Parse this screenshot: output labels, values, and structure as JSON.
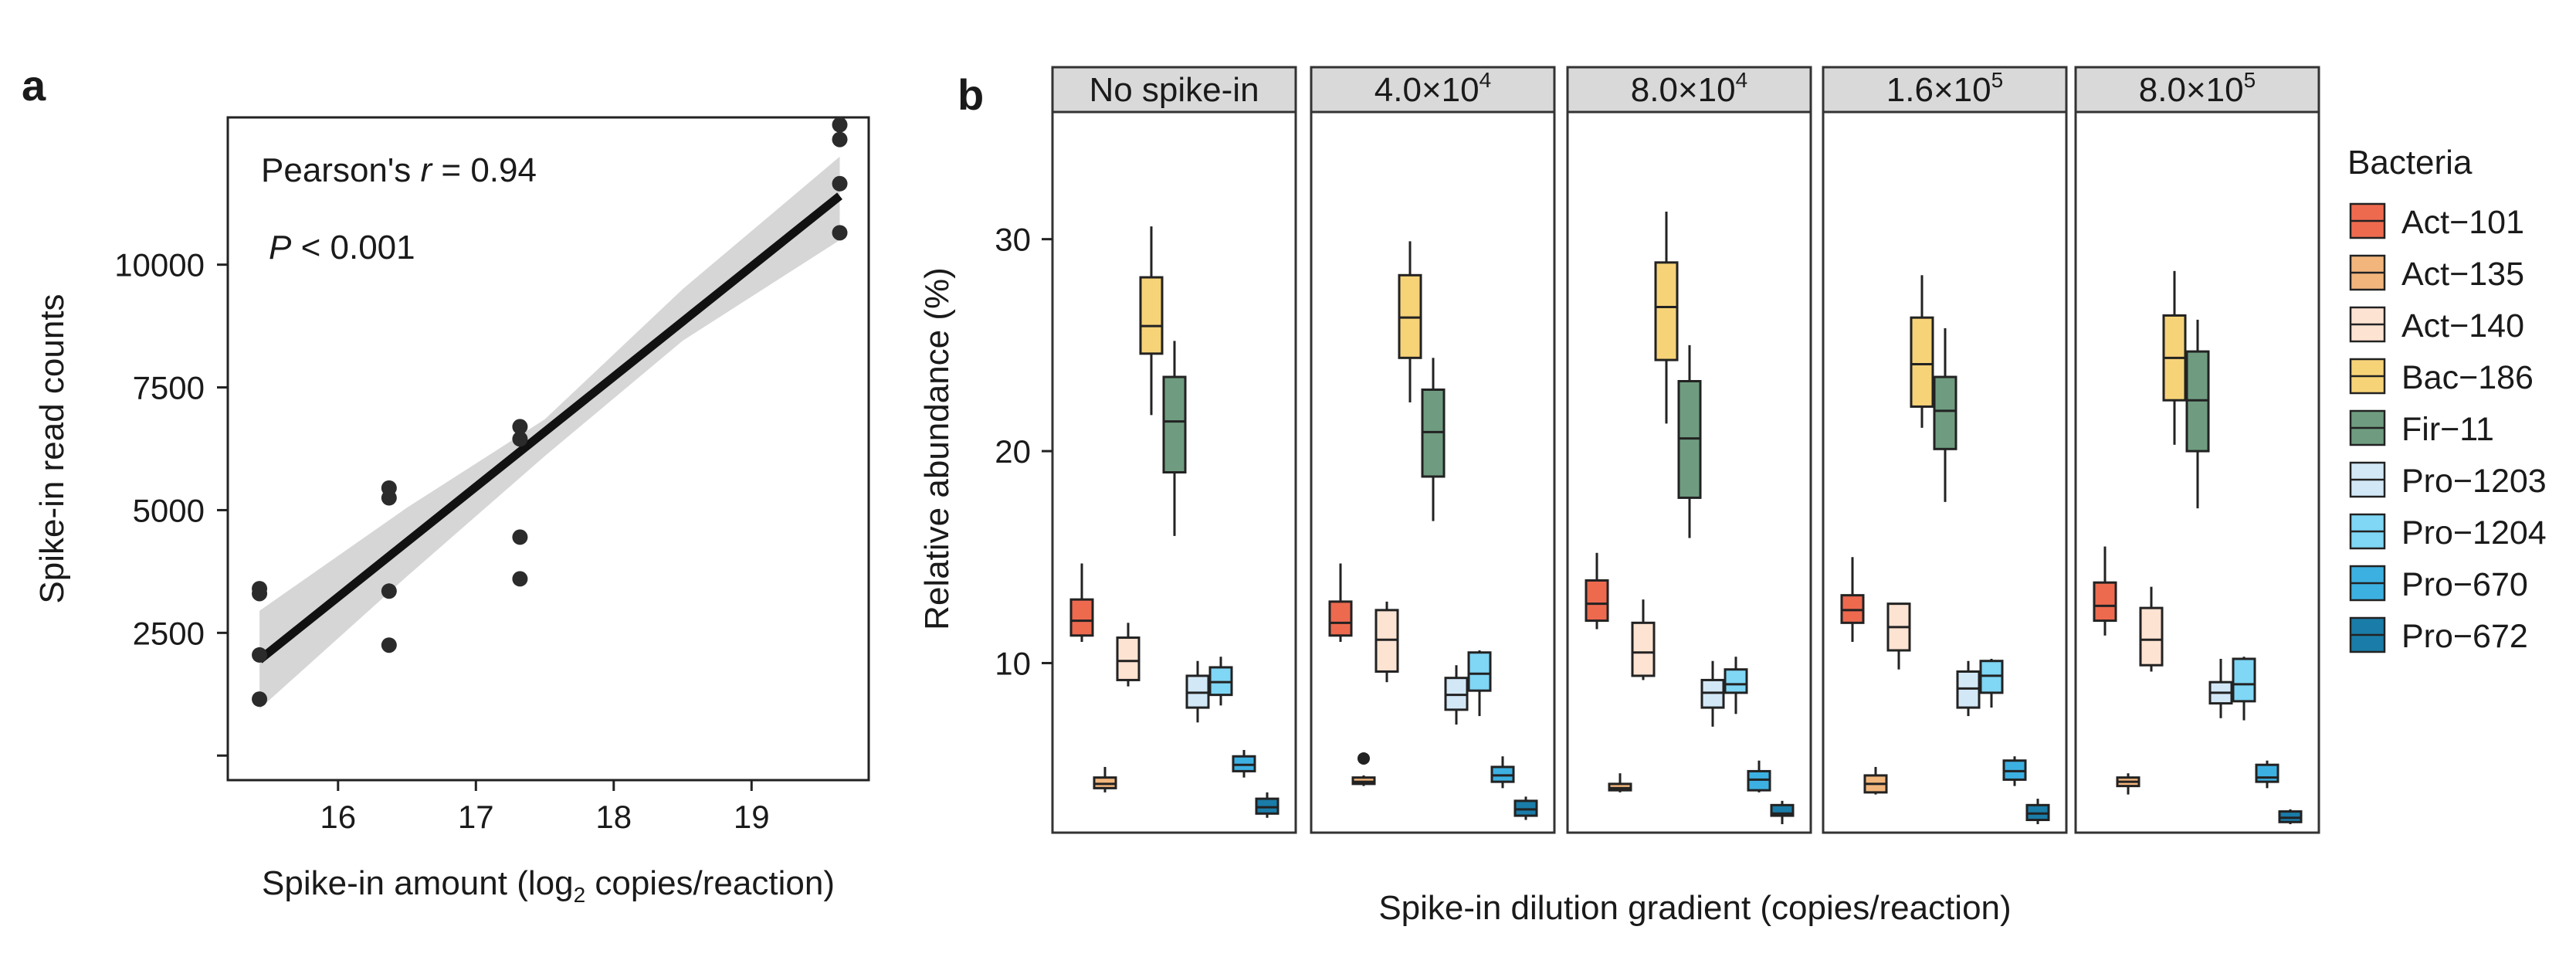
{
  "panels": [
    {
      "letter": "a",
      "chart_data": {
        "type": "scatter",
        "xlabel_parts": [
          "Spike-in amount (log",
          "2",
          " copies/reaction)"
        ],
        "ylabel": "Spike-in read counts",
        "xlim": [
          15.2,
          19.85
        ],
        "ylim": [
          -500,
          13000
        ],
        "x_ticks": [
          16,
          17,
          18,
          19
        ],
        "y_ticks": [
          0,
          2500,
          5000,
          7500,
          10000
        ],
        "y_tick_labels": [
          "",
          "2500",
          "5000",
          "7500",
          "10000"
        ],
        "grid": false,
        "points": [
          {
            "x": 15.43,
            "y": 1150
          },
          {
            "x": 15.43,
            "y": 2050
          },
          {
            "x": 15.43,
            "y": 3300
          },
          {
            "x": 15.43,
            "y": 3400
          },
          {
            "x": 16.37,
            "y": 2250
          },
          {
            "x": 16.37,
            "y": 3350
          },
          {
            "x": 16.37,
            "y": 5250
          },
          {
            "x": 16.37,
            "y": 5450
          },
          {
            "x": 17.32,
            "y": 3600
          },
          {
            "x": 17.32,
            "y": 4450
          },
          {
            "x": 17.32,
            "y": 6450
          },
          {
            "x": 17.32,
            "y": 6700
          },
          {
            "x": 19.64,
            "y": 10650
          },
          {
            "x": 19.64,
            "y": 11650
          },
          {
            "x": 19.64,
            "y": 12550
          },
          {
            "x": 19.64,
            "y": 12850
          }
        ],
        "fit": {
          "x": [
            15.43,
            19.64
          ],
          "y": [
            1950,
            11400
          ]
        },
        "ci_band": {
          "x": [
            15.43,
            16.5,
            17.5,
            18.5,
            19.64
          ],
          "lower": [
            950,
            3650,
            6100,
            8450,
            10500
          ],
          "upper": [
            2950,
            5050,
            6850,
            9500,
            12200
          ]
        },
        "annotations": [
          {
            "parts": [
              "Pearson's ",
              "r",
              " = 0.94"
            ]
          },
          {
            "parts": [
              "P",
              " < 0.001"
            ]
          }
        ]
      }
    },
    {
      "letter": "b",
      "chart_data": {
        "type": "boxplot",
        "xlabel": "Spike-in dilution gradient (copies/reaction)",
        "ylabel": "Relative abundance (%)",
        "ylim": [
          2,
          36
        ],
        "y_ticks": [
          10,
          20,
          30
        ],
        "y_tick_labels": [
          "10",
          "20",
          "30"
        ],
        "grid": false,
        "legend": {
          "title": "Bacteria",
          "placement": "right",
          "entries": [
            {
              "name": "Act−101",
              "color": "#ee6a4f"
            },
            {
              "name": "Act−135",
              "color": "#f2b67d"
            },
            {
              "name": "Act−140",
              "color": "#fce3d2"
            },
            {
              "name": "Bac−186",
              "color": "#f7d378"
            },
            {
              "name": "Fir−11",
              "color": "#6f9c80"
            },
            {
              "name": "Pro−1203",
              "color": "#d3e8f7"
            },
            {
              "name": "Pro−1204",
              "color": "#7fd6f5"
            },
            {
              "name": "Pro−670",
              "color": "#3db0e2"
            },
            {
              "name": "Pro−672",
              "color": "#1a7ca8"
            }
          ]
        },
        "facets": [
          {
            "label_parts": [
              "No spike-in"
            ],
            "boxes": [
              [
                11.0,
                11.3,
                12.0,
                13.0,
                14.7
              ],
              [
                3.9,
                4.1,
                4.3,
                4.6,
                5.1
              ],
              [
                8.9,
                9.2,
                10.1,
                11.2,
                11.9
              ],
              [
                21.7,
                24.6,
                25.9,
                28.2,
                30.6
              ],
              [
                16.0,
                19.0,
                21.4,
                23.5,
                25.2
              ],
              [
                7.2,
                7.9,
                8.6,
                9.4,
                10.1
              ],
              [
                8.0,
                8.5,
                9.1,
                9.8,
                10.3
              ],
              [
                4.6,
                4.9,
                5.2,
                5.6,
                5.9
              ],
              [
                2.7,
                2.9,
                3.2,
                3.6,
                3.9
              ]
            ],
            "outliers": [
              [],
              [],
              [],
              [],
              [],
              [],
              [],
              [],
              []
            ]
          },
          {
            "label_parts": [
              "4.0×10",
              "4"
            ],
            "boxes": [
              [
                11.0,
                11.3,
                11.9,
                12.9,
                14.7
              ],
              [
                4.2,
                4.3,
                4.4,
                4.6,
                4.7
              ],
              [
                9.1,
                9.6,
                11.1,
                12.5,
                12.9
              ],
              [
                22.3,
                24.4,
                26.3,
                28.3,
                29.9
              ],
              [
                16.7,
                18.8,
                20.9,
                22.9,
                24.4
              ],
              [
                7.1,
                7.8,
                8.5,
                9.3,
                9.9
              ],
              [
                7.5,
                8.7,
                9.5,
                10.5,
                10.6
              ],
              [
                4.1,
                4.4,
                4.7,
                5.1,
                5.6
              ],
              [
                2.6,
                2.8,
                3.1,
                3.5,
                3.7
              ]
            ],
            "outliers": [
              [],
              [
                5.5
              ],
              [],
              [],
              [],
              [],
              [],
              [],
              []
            ]
          },
          {
            "label_parts": [
              "8.0×10",
              "4"
            ],
            "boxes": [
              [
                11.6,
                12.0,
                12.8,
                13.9,
                15.2
              ],
              [
                3.9,
                4.0,
                4.1,
                4.3,
                4.8
              ],
              [
                9.2,
                9.4,
                10.5,
                11.9,
                13.0
              ],
              [
                21.3,
                24.3,
                26.8,
                28.9,
                31.3
              ],
              [
                15.9,
                17.8,
                20.6,
                23.3,
                25.0
              ],
              [
                7.0,
                7.9,
                8.6,
                9.2,
                10.1
              ],
              [
                7.6,
                8.6,
                9.0,
                9.7,
                10.3
              ],
              [
                3.9,
                4.0,
                4.5,
                4.9,
                5.4
              ],
              [
                2.4,
                2.8,
                2.9,
                3.3,
                3.5
              ]
            ],
            "outliers": [
              [],
              [],
              [],
              [],
              [],
              [],
              [],
              [],
              []
            ]
          },
          {
            "label_parts": [
              "1.6×10",
              "5"
            ],
            "boxes": [
              [
                11.0,
                11.9,
                12.5,
                13.2,
                15.0
              ],
              [
                3.8,
                3.9,
                4.3,
                4.7,
                5.1
              ],
              [
                9.7,
                10.6,
                11.7,
                12.8,
                12.8
              ],
              [
                21.1,
                22.1,
                24.1,
                26.3,
                28.3
              ],
              [
                17.6,
                20.1,
                21.9,
                23.5,
                25.8
              ],
              [
                7.5,
                7.9,
                8.8,
                9.6,
                10.1
              ],
              [
                7.9,
                8.6,
                9.4,
                10.1,
                10.2
              ],
              [
                4.2,
                4.5,
                4.9,
                5.4,
                5.6
              ],
              [
                2.4,
                2.6,
                2.9,
                3.3,
                3.6
              ]
            ],
            "outliers": [
              [],
              [],
              [],
              [],
              [],
              [],
              [],
              [],
              []
            ]
          },
          {
            "label_parts": [
              "8.0×10",
              "5"
            ],
            "boxes": [
              [
                11.3,
                12.0,
                12.7,
                13.8,
                15.5
              ],
              [
                3.8,
                4.2,
                4.4,
                4.6,
                4.8
              ],
              [
                9.6,
                9.9,
                11.1,
                12.6,
                13.6
              ],
              [
                20.3,
                22.4,
                24.4,
                26.4,
                28.5
              ],
              [
                17.3,
                20.0,
                22.4,
                24.7,
                26.2
              ],
              [
                7.4,
                8.1,
                8.6,
                9.1,
                10.2
              ],
              [
                7.3,
                8.2,
                9.0,
                10.2,
                10.3
              ],
              [
                4.1,
                4.4,
                4.6,
                5.2,
                5.4
              ],
              [
                2.4,
                2.5,
                2.7,
                3.0,
                3.1
              ]
            ],
            "outliers": [
              [],
              [],
              [],
              [],
              [],
              [],
              [],
              [],
              []
            ]
          }
        ]
      }
    }
  ]
}
